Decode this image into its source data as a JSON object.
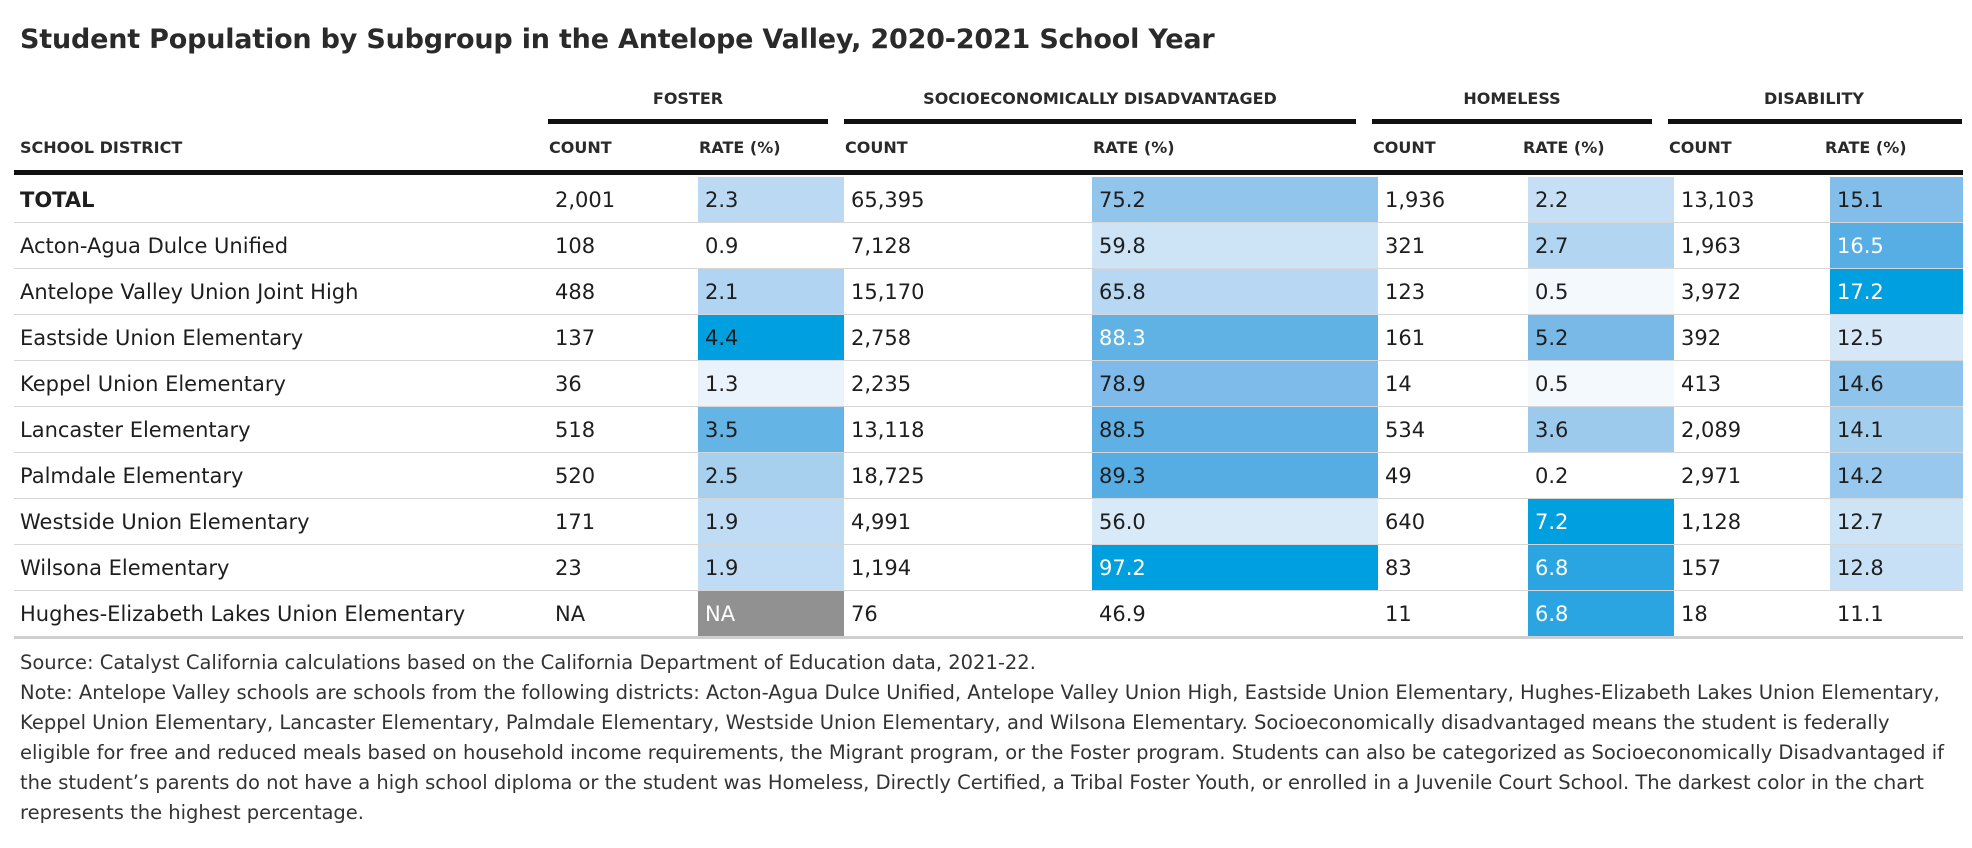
{
  "chart_data": {
    "type": "table",
    "title": "Student Population by Subgroup in the Antelope Valley, 2020-2021 School Year",
    "groups": [
      "FOSTER",
      "SOCIOECONOMICALLY DISADVANTAGED",
      "HOMELESS",
      "DISABILITY"
    ],
    "columns": [
      "SCHOOL DISTRICT",
      "COUNT",
      "RATE (%)",
      "COUNT",
      "RATE (%)",
      "COUNT",
      "RATE (%)",
      "COUNT",
      "RATE (%)"
    ],
    "rows": [
      {
        "district": "TOTAL",
        "values": [
          "2,001",
          "2.3",
          "65,395",
          "75.2",
          "1,936",
          "2.2",
          "13,103",
          "15.1"
        ]
      },
      {
        "district": "Acton-Agua Dulce Unified",
        "values": [
          "108",
          "0.9",
          "7,128",
          "59.8",
          "321",
          "2.7",
          "1,963",
          "16.5"
        ]
      },
      {
        "district": "Antelope Valley Union Joint High",
        "values": [
          "488",
          "2.1",
          "15,170",
          "65.8",
          "123",
          "0.5",
          "3,972",
          "17.2"
        ]
      },
      {
        "district": "Eastside Union Elementary",
        "values": [
          "137",
          "4.4",
          "2,758",
          "88.3",
          "161",
          "5.2",
          "392",
          "12.5"
        ]
      },
      {
        "district": "Keppel Union Elementary",
        "values": [
          "36",
          "1.3",
          "2,235",
          "78.9",
          "14",
          "0.5",
          "413",
          "14.6"
        ]
      },
      {
        "district": "Lancaster Elementary",
        "values": [
          "518",
          "3.5",
          "13,118",
          "88.5",
          "534",
          "3.6",
          "2,089",
          "14.1"
        ]
      },
      {
        "district": "Palmdale Elementary",
        "values": [
          "520",
          "2.5",
          "18,725",
          "89.3",
          "49",
          "0.2",
          "2,971",
          "14.2"
        ]
      },
      {
        "district": "Westside Union Elementary",
        "values": [
          "171",
          "1.9",
          "4,991",
          "56.0",
          "640",
          "7.2",
          "1,128",
          "12.7"
        ]
      },
      {
        "district": "Wilsona Elementary",
        "values": [
          "23",
          "1.9",
          "1,194",
          "97.2",
          "83",
          "6.8",
          "157",
          "12.8"
        ]
      },
      {
        "district": "Hughes-Elizabeth Lakes Union Elementary",
        "values": [
          "NA",
          "NA",
          "76",
          "46.9",
          "11",
          "6.8",
          "18",
          "11.1"
        ]
      }
    ],
    "cell_colors": [
      [
        "#bbd9f2",
        "#92c5ec",
        "#c6dff5",
        "#83bdea"
      ],
      [
        "#ffffff",
        "#cde3f6",
        "#b2d5f1",
        "#56aee4"
      ],
      [
        "#b0d4f1",
        "#b7d7f2",
        "#f4f9fd",
        "#00a0e0"
      ],
      [
        "#00a0e0",
        "#60b2e5",
        "#78b9e8",
        "#d6e8f8"
      ],
      [
        "#eaf3fc",
        "#7fbbea",
        "#f4f9fd",
        "#8ec3eb"
      ],
      [
        "#65b4e6",
        "#5fb1e5",
        "#9ccaed",
        "#a3ceee"
      ],
      [
        "#a7d0ef",
        "#55ade3",
        "#ffffff",
        "#98c8ed"
      ],
      [
        "#c0dcf4",
        "#d8e9f8",
        "#00a0e0",
        "#cde3f6"
      ],
      [
        "#c0dcf4",
        "#00a0e0",
        "#2aa5e2",
        "#c8e0f5"
      ],
      [
        "#919191",
        "#ffffff",
        "#2aa5e2",
        "#ffffff"
      ]
    ],
    "white_text_cells": [
      [
        3,
        1
      ],
      [
        8,
        1
      ],
      [
        9,
        0
      ],
      [
        1,
        3
      ],
      [
        2,
        3
      ],
      [
        7,
        2
      ],
      [
        8,
        2
      ],
      [
        9,
        2
      ]
    ],
    "source": "Source: Catalyst California calculations based on the California Department of Education data, 2021-22.",
    "note": "Note: Antelope Valley schools are schools from the following districts: Acton-Agua Dulce Unified, Antelope Valley Union High, Eastside Union Elementary, Hughes-Elizabeth Lakes Union Elementary, Keppel Union Elementary, Lancaster Elementary, Palmdale Elementary, Westside Union Elementary, and Wilsona Elementary. Socioeconomically disadvantaged means the student is federally eligible for free and reduced meals based on household income requirements, the Migrant program, or the Foster program. Students can also be categorized as Socioeconomically Disadvantaged if the student’s parents do not have a high school diploma or the student was Homeless, Directly Certified, a Tribal Foster Youth, or enrolled in a Juvenile Court School. The darkest color in the chart represents the highest percentage."
  }
}
